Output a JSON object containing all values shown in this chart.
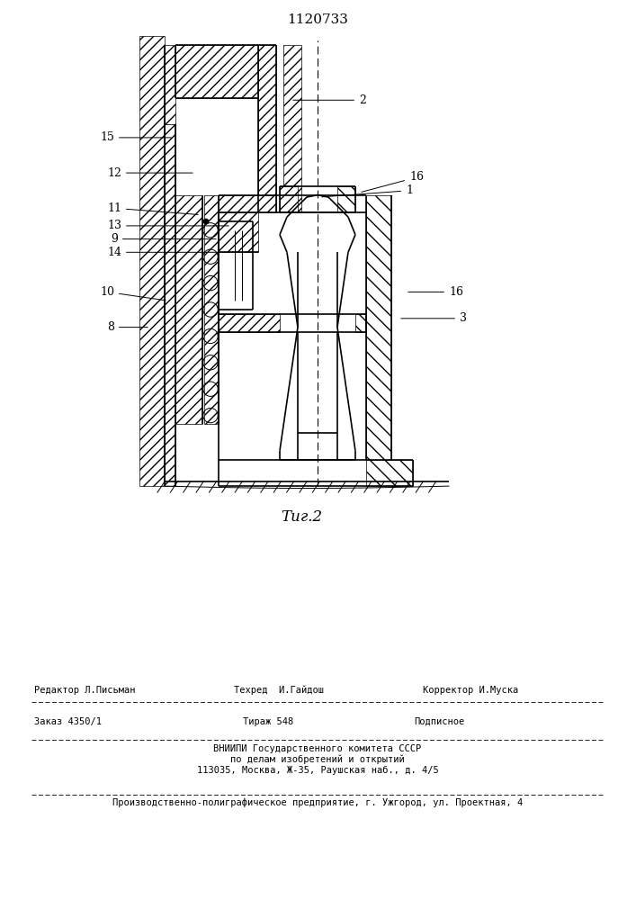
{
  "title": "1120733",
  "fig_label": "Τиг.2",
  "background_color": "#ffffff",
  "line_color": "#000000",
  "editor_line": "Редактор Л.Письман",
  "tech_line": "Техред  И.Гайдош",
  "corrector_line": "Корректор И.Муска",
  "order_line": "Заказ 4350/1",
  "tirazh_line": "Тираж 548",
  "podpisnoe_line": "Подписное",
  "vniiipi_line1": "ВНИИПИ Государственного комитета СССР",
  "vniiipi_line2": "по делам изобретений и открытий",
  "vniiipi_line3": "113035, Москва, Ж-35, Раушская наб., д. 4/5",
  "production_line": "Производственно-полиграфическое предприятие, г. Ужгород, ул. Проектная, 4"
}
